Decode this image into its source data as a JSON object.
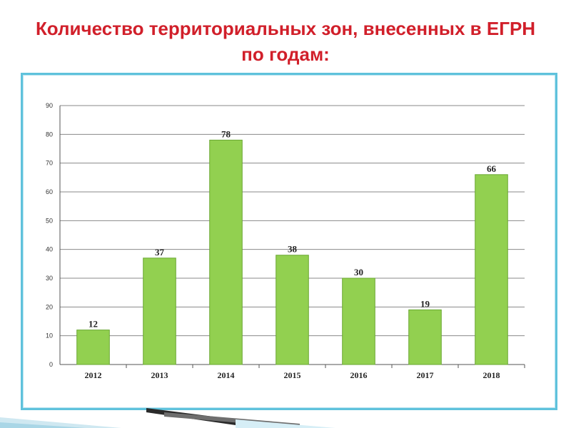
{
  "slide": {
    "title": "Количество территориальных зон, внесенных в ЕГРН по годам:"
  },
  "colors": {
    "title": "#d11f2a",
    "frame": "#5fc2dc",
    "bar_fill": "#92d050",
    "bar_stroke": "#6aa832",
    "gridline": "#8a8a8a"
  },
  "chart_data": {
    "type": "bar",
    "title": "",
    "xlabel": "",
    "ylabel": "",
    "categories": [
      "2012",
      "2013",
      "2014",
      "2015",
      "2016",
      "2017",
      "2018"
    ],
    "values": [
      12,
      37,
      78,
      38,
      30,
      19,
      66
    ],
    "data_labels": [
      "12",
      "37",
      "78",
      "38",
      "30",
      "19",
      "66"
    ],
    "ylim": [
      0,
      90
    ],
    "yticks": [
      0,
      10,
      20,
      30,
      40,
      50,
      60,
      70,
      80,
      90
    ],
    "grid": true,
    "legend": "none"
  }
}
